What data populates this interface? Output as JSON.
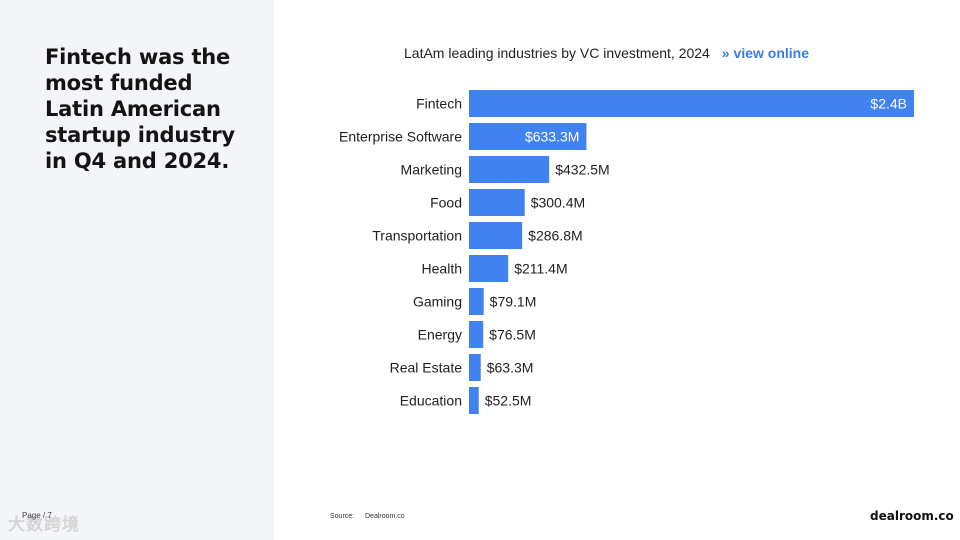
{
  "slide": {
    "headline": "Fintech was the most funded Latin American startup industry in Q4 and 2024.",
    "page_label": "Page / 7",
    "watermark": "大数跨境"
  },
  "header": {
    "chart_title": "LatAm leading industries by VC investment, 2024",
    "link_arrow": "»",
    "link_label": "view online"
  },
  "footer": {
    "source_label": "Source:",
    "source_value": "Dealroom.co",
    "brand": "dealroom.co"
  },
  "colors": {
    "bar": "#3f82f0",
    "label_inside": "#ffffff",
    "label_outside": "#1f1f1f",
    "link": "#3a7bea",
    "left_panel": "#f4f5f8"
  },
  "chart_data": {
    "type": "bar",
    "orientation": "horizontal",
    "title": "LatAm leading industries by VC investment, 2024",
    "unit": "USD",
    "categories": [
      "Fintech",
      "Enterprise Software",
      "Marketing",
      "Food",
      "Transportation",
      "Health",
      "Gaming",
      "Energy",
      "Real Estate",
      "Education"
    ],
    "values": [
      2400,
      633.3,
      432.5,
      300.4,
      286.8,
      211.4,
      79.1,
      76.5,
      63.3,
      52.5
    ],
    "value_unit": "$M",
    "labels": [
      "$2.4B",
      "$633.3M",
      "$432.5M",
      "$300.4M",
      "$286.8M",
      "$211.4M",
      "$79.1M",
      "$76.5M",
      "$63.3M",
      "$52.5M"
    ],
    "grid": false,
    "legend": "none"
  }
}
